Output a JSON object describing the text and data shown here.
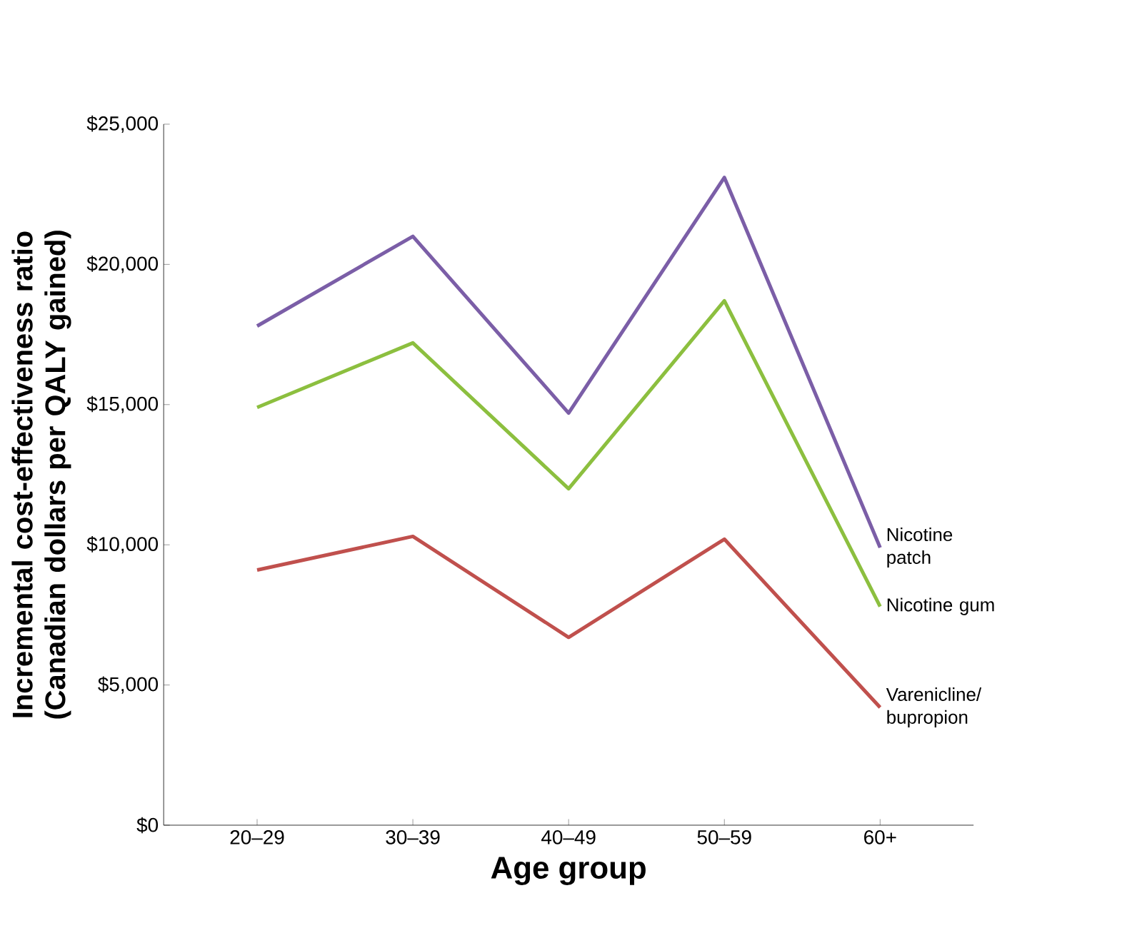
{
  "chart_data": {
    "type": "line",
    "xlabel": "Age group",
    "ylabel": "Incremental cost-effectiveness ratio (Canadian dollars per QALY gained)",
    "categories": [
      "20–29",
      "30–39",
      "40–49",
      "50–59",
      "60+"
    ],
    "ylim": [
      0,
      25000
    ],
    "yticks": [
      {
        "value": 0,
        "label": "$0"
      },
      {
        "value": 5000,
        "label": "$5,000"
      },
      {
        "value": 10000,
        "label": "$10,000"
      },
      {
        "value": 15000,
        "label": "$15,000"
      },
      {
        "value": 20000,
        "label": "$20,000"
      },
      {
        "value": 25000,
        "label": "$25,000"
      }
    ],
    "series": [
      {
        "name": "Nicotine patch",
        "color": "#7b5ea7",
        "values": [
          17800,
          21000,
          14700,
          23100,
          9900
        ]
      },
      {
        "name": "Nicotine gum",
        "color": "#8cbf3f",
        "values": [
          14900,
          17200,
          12000,
          18700,
          7800
        ]
      },
      {
        "name": "Varenicline/ bupropion",
        "color": "#c0504d",
        "values": [
          9100,
          10300,
          6700,
          10200,
          4200
        ]
      }
    ]
  }
}
